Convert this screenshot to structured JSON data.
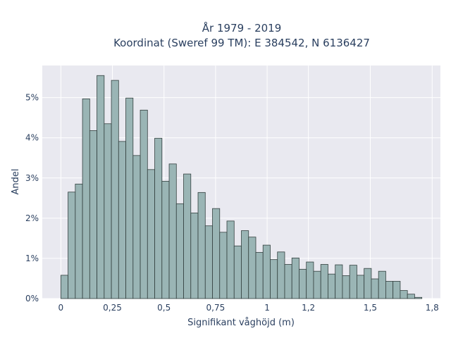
{
  "chart_data": {
    "type": "bar",
    "title_line1": "År 1979 - 2019",
    "title_line2": "Koordinat (Sweref 99 TM): E 384542, N 6136427",
    "xlabel": "Signifikant våghöjd (m)",
    "ylabel": "Andel",
    "xlim": [
      -0.09,
      1.84
    ],
    "ylim": [
      0,
      5.8
    ],
    "x_ticks": [
      0,
      0.25,
      0.5,
      0.75,
      1,
      1.2,
      1.5,
      1.8
    ],
    "x_tick_labels": [
      "0",
      "0,25",
      "0,5",
      "0,75",
      "1",
      "1,2",
      "1,5",
      "1,8"
    ],
    "y_ticks": [
      0,
      1,
      2,
      3,
      4,
      5
    ],
    "y_tick_labels": [
      "0%",
      "1%",
      "2%",
      "3%",
      "4%",
      "5%"
    ],
    "bin_width": 0.035,
    "bin_starts": [
      0,
      0.035,
      0.07,
      0.105,
      0.14,
      0.175,
      0.21,
      0.245,
      0.28,
      0.315,
      0.35,
      0.385,
      0.42,
      0.455,
      0.49,
      0.525,
      0.56,
      0.595,
      0.63,
      0.665,
      0.7,
      0.735,
      0.77,
      0.805,
      0.84,
      0.875,
      0.91,
      0.945,
      0.98,
      1.015,
      1.05,
      1.085,
      1.12,
      1.155,
      1.19,
      1.225,
      1.26,
      1.295,
      1.33,
      1.365,
      1.4,
      1.435,
      1.47,
      1.505,
      1.54,
      1.575,
      1.61,
      1.645,
      1.68,
      1.715,
      1.75,
      1.785
    ],
    "values": [
      0.58,
      2.65,
      2.85,
      4.97,
      4.18,
      5.55,
      4.35,
      5.43,
      3.91,
      4.99,
      3.56,
      4.69,
      3.21,
      3.99,
      2.92,
      3.35,
      2.36,
      3.1,
      2.13,
      2.64,
      1.81,
      2.24,
      1.65,
      1.93,
      1.31,
      1.69,
      1.53,
      1.15,
      1.33,
      0.97,
      1.16,
      0.85,
      1.01,
      0.73,
      0.91,
      0.68,
      0.85,
      0.61,
      0.84,
      0.57,
      0.83,
      0.58,
      0.75,
      0.49,
      0.68,
      0.43,
      0.43,
      0.2,
      0.11,
      0.03,
      0.0,
      0.0
    ],
    "colors": {
      "bar_fill": "#9ab5b5",
      "bar_edge": "#33403f",
      "plot_bg": "#e9e9f0",
      "grid": "#ffffff",
      "text": "#2a3f5f"
    },
    "grid": true,
    "legend": "none"
  }
}
